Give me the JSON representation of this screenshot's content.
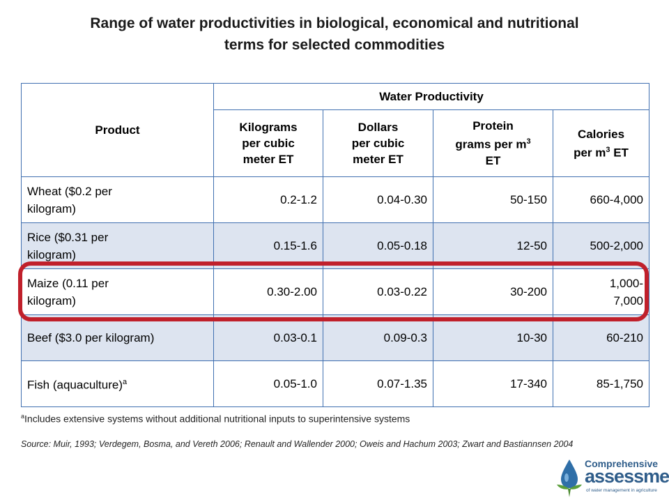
{
  "title_line1": "Range of water productivities in biological, economical and nutritional",
  "title_line2": "terms for selected commodities",
  "table": {
    "product_header": "Product",
    "group_header": "Water Productivity",
    "col_kg_line1": "Kilograms",
    "col_kg_line2": "per cubic",
    "col_kg_line3": "meter ET",
    "col_usd_line1": "Dollars",
    "col_usd_line2": "per cubic",
    "col_usd_line3": "meter ET",
    "col_protein_line1": "Protein",
    "col_protein_line2a": "grams per m",
    "col_protein_sup": "3",
    "col_protein_line3": "ET",
    "col_cal_line1": "Calories",
    "col_cal_line2a": "per m",
    "col_cal_sup": "3",
    "col_cal_line2b": " ET",
    "rows": [
      {
        "product_line1": "Wheat ($0.2 per",
        "product_line2": "kilogram)",
        "kg": "0.2-1.2",
        "usd": "0.04-0.30",
        "protein": "50-150",
        "cal_line1": "660-4,000",
        "cal_line2": ""
      },
      {
        "product_line1": "Rice ($0.31 per",
        "product_line2": "kilogram)",
        "kg": "0.15-1.6",
        "usd": "0.05-0.18",
        "protein": "12-50",
        "cal_line1": "500-2,000",
        "cal_line2": ""
      },
      {
        "product_line1": "Maize (0.11 per",
        "product_line2": "kilogram)",
        "kg": "0.30-2.00",
        "usd": "0.03-0.22",
        "protein": "30-200",
        "cal_line1": "1,000-",
        "cal_line2": "7,000"
      },
      {
        "product_line1": "Beef ($3.0 per kilogram)",
        "product_line2": "",
        "kg": "0.03-0.1",
        "usd": "0.09-0.3",
        "protein": "10-30",
        "cal_line1": "60-210",
        "cal_line2": ""
      },
      {
        "product_line1": "Fish (aquaculture)",
        "product_sup": "a",
        "product_line2": "",
        "kg": "0.05-1.0",
        "usd": "0.07-1.35",
        "protein": "17-340",
        "cal_line1": "85-1,750",
        "cal_line2": ""
      }
    ]
  },
  "footnote_sup": "a",
  "footnote": "Includes extensive systems without additional nutritional inputs to superintensive systems",
  "source": "Source:  Muir, 1993; Verdegem, Bosma, and Vereth 2006; Renault and Wallender 2000; Oweis and Hachum 2003;  Zwart and Bastiannsen 2004",
  "logo": {
    "line1": "Comprehensive",
    "line2": "assessment",
    "line3": "of water management in agriculture"
  },
  "colors": {
    "table_border": "#3f6fb0",
    "alt_row": "#dde4f0",
    "highlight": "#c0202b",
    "logo_blue": "#2f5d8a",
    "logo_green": "#5a9e3a"
  }
}
